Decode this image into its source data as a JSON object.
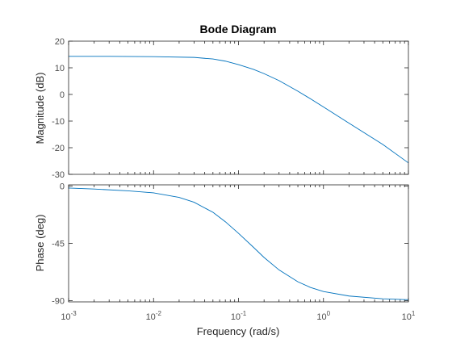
{
  "chart_data": {
    "type": "line",
    "title": "Bode Diagram",
    "xlabel": "Frequency  (rad/s)",
    "xscale": "log",
    "xlim": [
      0.001,
      10
    ],
    "x_ticks": [
      {
        "base": "10",
        "exp": "-3"
      },
      {
        "base": "10",
        "exp": "-2"
      },
      {
        "base": "10",
        "exp": "-1"
      },
      {
        "base": "10",
        "exp": "0"
      },
      {
        "base": "10",
        "exp": "1"
      }
    ],
    "line_color": "#0072bd",
    "magnitude": {
      "ylabel": "Magnitude (dB)",
      "ylim": [
        -30,
        20
      ],
      "y_ticks": [
        "20",
        "10",
        "0",
        "-10",
        "-20",
        "-30"
      ],
      "x": [
        0.001,
        0.003,
        0.01,
        0.03,
        0.05,
        0.07,
        0.1,
        0.15,
        0.2,
        0.3,
        0.5,
        0.7,
        1,
        2,
        5,
        10
      ],
      "y": [
        14.3,
        14.3,
        14.2,
        13.9,
        13.3,
        12.5,
        11.2,
        9.4,
        7.8,
        5.2,
        1.2,
        -1.6,
        -4.7,
        -10.8,
        -18.8,
        -25.7
      ]
    },
    "phase": {
      "ylabel": "Phase (deg)",
      "ylim": [
        -91,
        1
      ],
      "y_ticks": [
        "0",
        "-45",
        "-90"
      ],
      "x": [
        0.001,
        0.002,
        0.005,
        0.01,
        0.02,
        0.03,
        0.05,
        0.07,
        0.1,
        0.15,
        0.2,
        0.3,
        0.5,
        0.7,
        1,
        2,
        5,
        10
      ],
      "y": [
        -1.5,
        -2.3,
        -3.7,
        -5.3,
        -8.9,
        -12.7,
        -20.6,
        -28.0,
        -37.1,
        -48.1,
        -56.1,
        -65.9,
        -75.2,
        -79.6,
        -82.9,
        -86.4,
        -88.6,
        -89.3
      ]
    }
  }
}
